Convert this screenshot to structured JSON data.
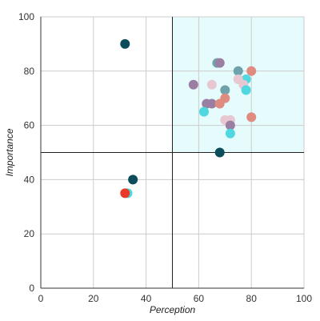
{
  "chart_data": {
    "type": "scatter",
    "title": "",
    "xlabel": "Perception",
    "ylabel": "Importance",
    "xlim": [
      0,
      100
    ],
    "ylim": [
      0,
      100
    ],
    "x_ticks": [
      0,
      20,
      40,
      60,
      80,
      100
    ],
    "y_ticks": [
      0,
      20,
      40,
      60,
      80,
      100
    ],
    "grid": true,
    "legend": "none",
    "quadrant": {
      "divider_x": 50,
      "divider_y": 50,
      "highlight": {
        "x_range": [
          50,
          100
        ],
        "y_range": [
          50,
          100
        ],
        "color": "#e6fbfc"
      }
    },
    "points": [
      {
        "x": 32,
        "y": 90,
        "color": "#0b4d5a"
      },
      {
        "x": 35,
        "y": 40,
        "color": "#0b4d5a"
      },
      {
        "x": 33,
        "y": 35,
        "color": "#4fd8e0"
      },
      {
        "x": 32,
        "y": 35,
        "color": "#e8392b"
      },
      {
        "x": 67,
        "y": 83,
        "color": "#6fa3ab"
      },
      {
        "x": 68,
        "y": 83,
        "color": "#9b7fa3"
      },
      {
        "x": 75,
        "y": 80,
        "color": "#6fa3ab"
      },
      {
        "x": 80,
        "y": 80,
        "color": "#e08b80"
      },
      {
        "x": 78,
        "y": 77,
        "color": "#4fd8e0"
      },
      {
        "x": 75,
        "y": 77,
        "color": "#e6c7d2"
      },
      {
        "x": 77,
        "y": 75,
        "color": "#e6c7d2"
      },
      {
        "x": 58,
        "y": 75,
        "color": "#9b7fa3"
      },
      {
        "x": 65,
        "y": 75,
        "color": "#e6c7d2"
      },
      {
        "x": 70,
        "y": 73,
        "color": "#6fa3ab"
      },
      {
        "x": 78,
        "y": 73,
        "color": "#4fd8e0"
      },
      {
        "x": 70,
        "y": 70,
        "color": "#e08b80"
      },
      {
        "x": 63,
        "y": 68,
        "color": "#9b7fa3"
      },
      {
        "x": 65,
        "y": 68,
        "color": "#9b7fa3"
      },
      {
        "x": 68,
        "y": 68,
        "color": "#e08b80"
      },
      {
        "x": 62,
        "y": 65,
        "color": "#4fd8e0"
      },
      {
        "x": 70,
        "y": 62,
        "color": "#e6c7d2"
      },
      {
        "x": 72,
        "y": 62,
        "color": "#e6c7d2"
      },
      {
        "x": 72,
        "y": 60,
        "color": "#9b7fa3"
      },
      {
        "x": 80,
        "y": 63,
        "color": "#e08b80"
      },
      {
        "x": 72,
        "y": 57,
        "color": "#4fd8e0"
      },
      {
        "x": 68,
        "y": 50,
        "color": "#0b4d5a"
      }
    ]
  }
}
